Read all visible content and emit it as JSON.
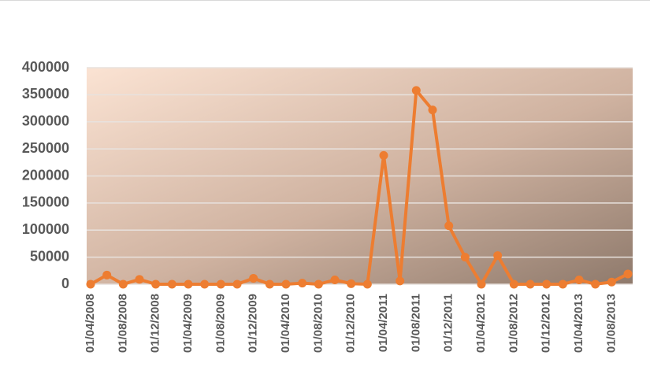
{
  "chart_data": {
    "type": "line",
    "categories": [
      "01/04/2008",
      null,
      "01/08/2008",
      null,
      "01/12/2008",
      null,
      "01/04/2009",
      null,
      "01/08/2009",
      null,
      "01/12/2009",
      null,
      "01/04/2010",
      null,
      "01/08/2010",
      null,
      "01/12/2010",
      null,
      "01/04/2011",
      null,
      "01/08/2011",
      null,
      "01/12/2011",
      null,
      "01/04/2012",
      null,
      "01/08/2012",
      null,
      "01/12/2012",
      null,
      "01/04/2013",
      null,
      "01/08/2013",
      null
    ],
    "series": [
      {
        "color": "#ed7d31",
        "values": [
          0,
          17000,
          0,
          9000,
          0,
          0,
          0,
          0,
          0,
          0,
          11000,
          0,
          0,
          2000,
          0,
          8000,
          1000,
          0,
          238000,
          6000,
          358000,
          322000,
          108000,
          50000,
          0,
          53000,
          0,
          0,
          0,
          0,
          8000,
          0,
          4000,
          19000
        ]
      }
    ],
    "ylim": [
      0,
      400000
    ],
    "yticks": [
      0,
      50000,
      100000,
      150000,
      200000,
      250000,
      300000,
      350000,
      400000
    ],
    "grid": true
  }
}
